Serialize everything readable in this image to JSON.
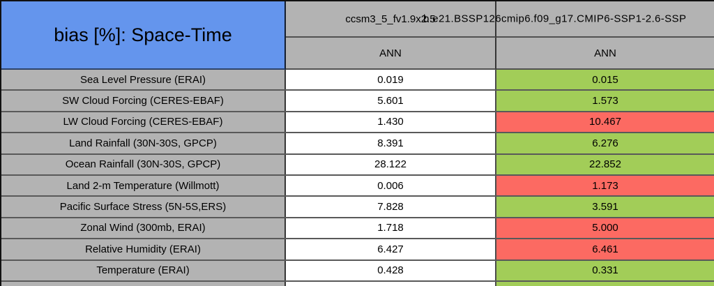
{
  "colors": {
    "title_blue": "#6495ED",
    "cell_gray": "#B3B3B3",
    "better_green": "#A2CD58",
    "worse_red": "#FC6A62",
    "neutral_white": "#FFFFFF"
  },
  "chart_data": {
    "type": "table",
    "title": "bias [%]: Space-Time",
    "column_headers": [
      "ccsm3_5_fv1.9x2.5",
      "b.e21.BSSP126cmip6.f09_g17.CMIP6-SSP1-2.6-SSP"
    ],
    "subheaders": [
      "ANN",
      "ANN"
    ],
    "rows": [
      {
        "label": "Sea Level Pressure (ERAI)",
        "values": [
          "0.019",
          "0.015"
        ],
        "colors": [
          "white",
          "green"
        ]
      },
      {
        "label": "SW Cloud Forcing (CERES-EBAF)",
        "values": [
          "5.601",
          "1.573"
        ],
        "colors": [
          "white",
          "green"
        ]
      },
      {
        "label": "LW Cloud Forcing (CERES-EBAF)",
        "values": [
          "1.430",
          "10.467"
        ],
        "colors": [
          "white",
          "red"
        ]
      },
      {
        "label": "Land Rainfall (30N-30S, GPCP)",
        "values": [
          "8.391",
          "6.276"
        ],
        "colors": [
          "white",
          "green"
        ]
      },
      {
        "label": "Ocean Rainfall (30N-30S, GPCP)",
        "values": [
          "28.122",
          "22.852"
        ],
        "colors": [
          "white",
          "green"
        ]
      },
      {
        "label": "Land 2-m Temperature (Willmott)",
        "values": [
          "0.006",
          "1.173"
        ],
        "colors": [
          "white",
          "red"
        ]
      },
      {
        "label": "Pacific Surface Stress (5N-5S,ERS)",
        "values": [
          "7.828",
          "3.591"
        ],
        "colors": [
          "white",
          "green"
        ]
      },
      {
        "label": "Zonal Wind (300mb, ERAI)",
        "values": [
          "1.718",
          "5.000"
        ],
        "colors": [
          "white",
          "red"
        ]
      },
      {
        "label": "Relative Humidity (ERAI)",
        "values": [
          "6.427",
          "6.461"
        ],
        "colors": [
          "white",
          "red"
        ]
      },
      {
        "label": "Temperature (ERAI)",
        "values": [
          "0.428",
          "0.331"
        ],
        "colors": [
          "white",
          "green"
        ]
      }
    ],
    "partial_row": {
      "colors": [
        "gray",
        "white",
        "green"
      ]
    }
  }
}
